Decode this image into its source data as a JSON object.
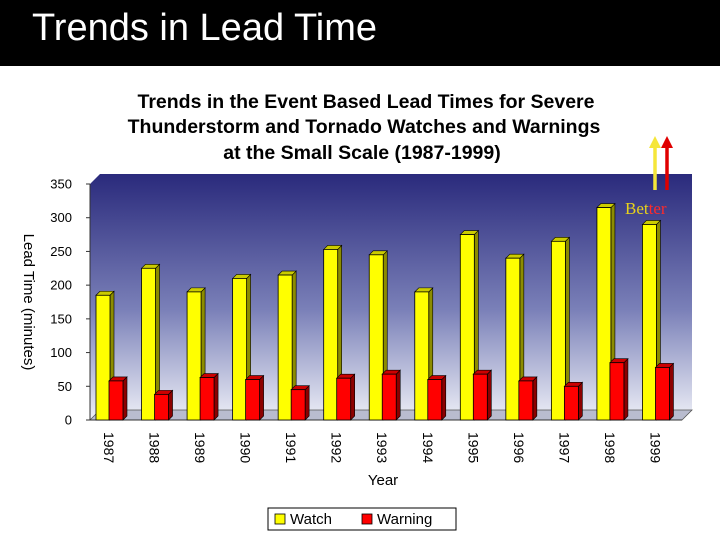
{
  "slide": {
    "title": "Trends in Lead Time"
  },
  "annotation": {
    "text_part1": "Bet",
    "text_part2": "ter",
    "color_part1": "#e8d21a",
    "color_part2": "#ff2a2a"
  },
  "colors": {
    "watch": "#ffff00",
    "warning": "#ff0000",
    "plot_top": "#2a2a7c",
    "plot_bottom": "#eef0f7",
    "arrow_yellow": "#f5e63a",
    "arrow_red": "#e00000"
  },
  "chart_data": {
    "type": "bar",
    "title_lines": [
      "Trends in the Event Based Lead Times for Severe",
      "Thunderstorm and Tornado Watches and Warnings",
      "at the Small Scale (1987-1999)"
    ],
    "xlabel": "Year",
    "ylabel": "Lead Time (minutes)",
    "ylim": [
      0,
      350
    ],
    "yticks": [
      0,
      50,
      100,
      150,
      200,
      250,
      300,
      350
    ],
    "categories": [
      "1987",
      "1988",
      "1989",
      "1990",
      "1991",
      "1992",
      "1993",
      "1994",
      "1995",
      "1996",
      "1997",
      "1998",
      "1999"
    ],
    "series": [
      {
        "name": "Watch",
        "values": [
          185,
          225,
          190,
          210,
          215,
          253,
          245,
          190,
          275,
          240,
          265,
          315,
          290
        ]
      },
      {
        "name": "Warning",
        "values": [
          58,
          38,
          63,
          60,
          45,
          62,
          68,
          60,
          68,
          58,
          50,
          85,
          78
        ]
      }
    ],
    "legend_position": "bottom",
    "grid": false
  }
}
